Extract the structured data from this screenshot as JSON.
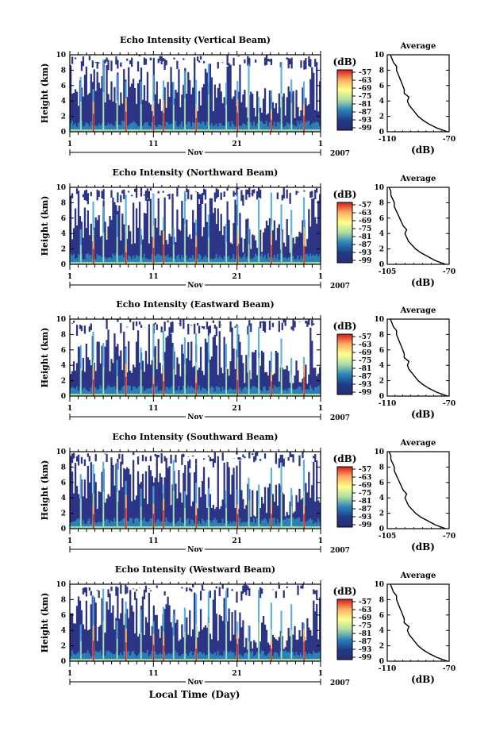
{
  "figure": {
    "xlabel": "Local Time (Day)"
  },
  "colorbar": {
    "title": "(dB)",
    "ticks": [
      "-57",
      "-63",
      "-69",
      "-75",
      "-81",
      "-87",
      "-93",
      "-99"
    ],
    "colors": [
      "#d7191c",
      "#fdae61",
      "#ffff8c",
      "#abdda4",
      "#2b83ba",
      "#1f3c88",
      "#2a2b6e"
    ]
  },
  "chart_data": [
    {
      "type": "heatmap",
      "title": "Echo Intensity (Vertical Beam)",
      "ylabel": "Height (km)",
      "yticks": [
        "0",
        "2",
        "4",
        "6",
        "8",
        "10"
      ],
      "ylim": [
        0,
        10
      ],
      "xticks": [
        "1",
        "11",
        "21",
        "1"
      ],
      "month_label": "Nov",
      "year_label": "2007",
      "colorbar_title": "(dB)",
      "colorbar_range": [
        -99,
        -57
      ],
      "profile": {
        "title": "Average",
        "xlabel": "(dB)",
        "xticks": [
          "-110",
          "-70"
        ],
        "xlim": [
          -110,
          -70
        ],
        "yticks": [
          "0",
          "2",
          "4",
          "6",
          "8",
          "10"
        ],
        "height_km": [
          0,
          0.5,
          1,
          1.5,
          2,
          2.5,
          3,
          3.5,
          4,
          4.5,
          5,
          5.5,
          6,
          6.5,
          7,
          7.5,
          8,
          8.5,
          9,
          9.5,
          10
        ],
        "intensity_db": [
          -71,
          -78,
          -83,
          -87,
          -90,
          -92,
          -94,
          -96,
          -97,
          -96,
          -99,
          -99,
          -100,
          -101,
          -102,
          -103,
          -104,
          -104,
          -106,
          -107,
          -108
        ]
      }
    },
    {
      "type": "heatmap",
      "title": "Echo Intensity (Northward Beam)",
      "ylabel": "Height (km)",
      "yticks": [
        "0",
        "2",
        "4",
        "6",
        "8",
        "10"
      ],
      "ylim": [
        0,
        10
      ],
      "xticks": [
        "1",
        "11",
        "21",
        "1"
      ],
      "month_label": "Nov",
      "year_label": "2007",
      "colorbar_title": "(dB)",
      "colorbar_range": [
        -99,
        -57
      ],
      "profile": {
        "title": "Average",
        "xlabel": "(dB)",
        "xticks": [
          "-105",
          "-70"
        ],
        "xlim": [
          -105,
          -70
        ],
        "yticks": [
          "0",
          "2",
          "4",
          "6",
          "8",
          "10"
        ],
        "height_km": [
          0,
          0.5,
          1,
          1.5,
          2,
          2.5,
          3,
          3.5,
          4,
          4.5,
          5,
          5.5,
          6,
          6.5,
          7,
          7.5,
          8,
          8.5,
          9,
          9.5,
          10
        ],
        "intensity_db": [
          -72,
          -78,
          -82,
          -86,
          -89,
          -91,
          -93,
          -94,
          -95,
          -94,
          -96,
          -97,
          -98,
          -99,
          -100,
          -101,
          -101,
          -102,
          -103,
          -103,
          -104
        ]
      }
    },
    {
      "type": "heatmap",
      "title": "Echo Intensity (Eastward Beam)",
      "ylabel": "Height (km)",
      "yticks": [
        "0",
        "2",
        "4",
        "6",
        "8",
        "10"
      ],
      "ylim": [
        0,
        10
      ],
      "xticks": [
        "1",
        "11",
        "21",
        "1"
      ],
      "month_label": "Nov",
      "year_label": "2007",
      "colorbar_title": "(dB)",
      "colorbar_range": [
        -99,
        -57
      ],
      "profile": {
        "title": "Average",
        "xlabel": "(dB)",
        "xticks": [
          "-110",
          "-70"
        ],
        "xlim": [
          -110,
          -70
        ],
        "yticks": [
          "0",
          "2",
          "4",
          "6",
          "8",
          "10"
        ],
        "height_km": [
          0,
          0.5,
          1,
          1.5,
          2,
          2.5,
          3,
          3.5,
          4,
          4.5,
          5,
          5.5,
          6,
          6.5,
          7,
          7.5,
          8,
          8.5,
          9,
          9.5,
          10
        ],
        "intensity_db": [
          -71,
          -78,
          -83,
          -87,
          -90,
          -92,
          -94,
          -96,
          -97,
          -96,
          -99,
          -99,
          -100,
          -101,
          -102,
          -103,
          -104,
          -104,
          -106,
          -107,
          -108
        ]
      }
    },
    {
      "type": "heatmap",
      "title": "Echo Intensity (Southward Beam)",
      "ylabel": "Height (km)",
      "yticks": [
        "0",
        "2",
        "4",
        "6",
        "8",
        "10"
      ],
      "ylim": [
        0,
        10
      ],
      "xticks": [
        "1",
        "11",
        "21",
        "1"
      ],
      "month_label": "Nov",
      "year_label": "2007",
      "colorbar_title": "(dB)",
      "colorbar_range": [
        -99,
        -57
      ],
      "profile": {
        "title": "Average",
        "xlabel": "(dB)",
        "xticks": [
          "-105",
          "-70"
        ],
        "xlim": [
          -105,
          -70
        ],
        "yticks": [
          "0",
          "2",
          "4",
          "6",
          "8",
          "10"
        ],
        "height_km": [
          0,
          0.5,
          1,
          1.5,
          2,
          2.5,
          3,
          3.5,
          4,
          4.5,
          5,
          5.5,
          6,
          6.5,
          7,
          7.5,
          8,
          8.5,
          9,
          9.5,
          10
        ],
        "intensity_db": [
          -72,
          -78,
          -82,
          -86,
          -89,
          -91,
          -93,
          -94,
          -95,
          -94,
          -96,
          -97,
          -98,
          -99,
          -100,
          -101,
          -101,
          -102,
          -103,
          -103,
          -104
        ]
      }
    },
    {
      "type": "heatmap",
      "title": "Echo Intensity (Westward Beam)",
      "ylabel": "Height (km)",
      "yticks": [
        "0",
        "2",
        "4",
        "6",
        "8",
        "10"
      ],
      "ylim": [
        0,
        10
      ],
      "xticks": [
        "1",
        "11",
        "21",
        "1"
      ],
      "month_label": "Nov",
      "year_label": "2007",
      "colorbar_title": "(dB)",
      "colorbar_range": [
        -99,
        -57
      ],
      "profile": {
        "title": "Average",
        "xlabel": "(dB)",
        "xticks": [
          "-110",
          "-70"
        ],
        "xlim": [
          -110,
          -70
        ],
        "yticks": [
          "0",
          "2",
          "4",
          "6",
          "8",
          "10"
        ],
        "height_km": [
          0,
          0.5,
          1,
          1.5,
          2,
          2.5,
          3,
          3.5,
          4,
          4.5,
          5,
          5.5,
          6,
          6.5,
          7,
          7.5,
          8,
          8.5,
          9,
          9.5,
          10
        ],
        "intensity_db": [
          -71,
          -78,
          -83,
          -87,
          -90,
          -92,
          -94,
          -96,
          -97,
          -96,
          -99,
          -99,
          -100,
          -101,
          -102,
          -103,
          -104,
          -104,
          -106,
          -107,
          -108
        ]
      }
    }
  ]
}
